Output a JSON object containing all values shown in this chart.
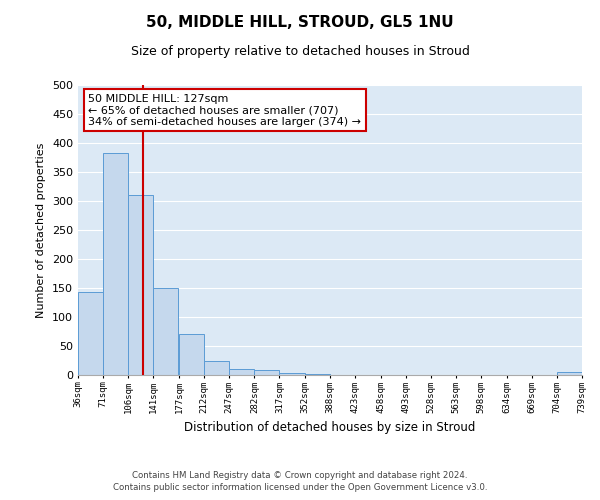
{
  "title": "50, MIDDLE HILL, STROUD, GL5 1NU",
  "subtitle": "Size of property relative to detached houses in Stroud",
  "xlabel": "Distribution of detached houses by size in Stroud",
  "ylabel": "Number of detached properties",
  "bar_color": "#c5d8ed",
  "bar_edge_color": "#5b9bd5",
  "background_color": "#dce9f5",
  "grid_color": "#ffffff",
  "bins": [
    36,
    71,
    106,
    141,
    177,
    212,
    247,
    282,
    317,
    352,
    388,
    423,
    458,
    493,
    528,
    563,
    598,
    634,
    669,
    704,
    739
  ],
  "counts": [
    143,
    383,
    310,
    150,
    70,
    25,
    10,
    8,
    3,
    1,
    0,
    0,
    0,
    0,
    0,
    0,
    0,
    0,
    0,
    5
  ],
  "property_size": 127,
  "property_line_color": "#cc0000",
  "annotation_text": "50 MIDDLE HILL: 127sqm\n← 65% of detached houses are smaller (707)\n34% of semi-detached houses are larger (374) →",
  "annotation_box_color": "#cc0000",
  "ylim": [
    0,
    500
  ],
  "yticks": [
    0,
    50,
    100,
    150,
    200,
    250,
    300,
    350,
    400,
    450,
    500
  ],
  "footer_line1": "Contains HM Land Registry data © Crown copyright and database right 2024.",
  "footer_line2": "Contains public sector information licensed under the Open Government Licence v3.0."
}
